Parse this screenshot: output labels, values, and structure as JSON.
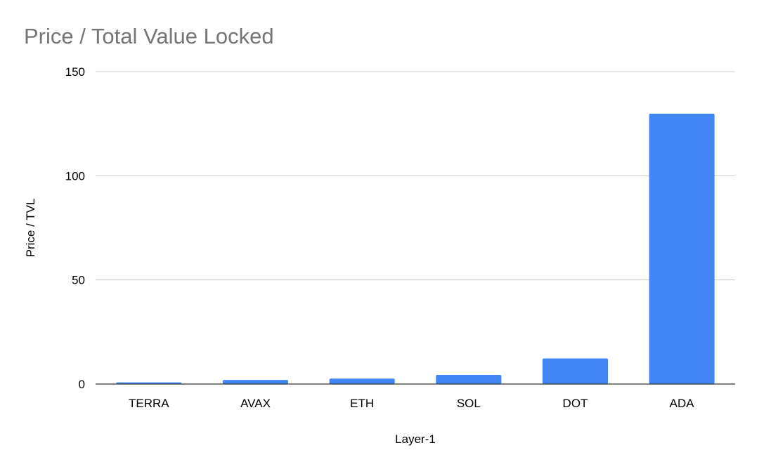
{
  "chart_data": {
    "type": "bar",
    "title": "Price / Total Value Locked",
    "xlabel": "Layer-1",
    "ylabel": "Price / TVL",
    "categories": [
      "TERRA",
      "AVAX",
      "ETH",
      "SOL",
      "DOT",
      "ADA"
    ],
    "series": [
      {
        "values": [
          0.8,
          2.0,
          2.6,
          4.4,
          12.3,
          129.8
        ],
        "color": "#4285f4"
      }
    ],
    "ylim": [
      0,
      150
    ],
    "yticks": [
      0,
      50,
      100,
      150
    ],
    "ytick_labels": [
      "0",
      "50",
      "100",
      "150"
    ],
    "grid": true,
    "legend": "none"
  },
  "colors": {
    "bar": "#4285f4",
    "title": "#757575",
    "grid": "#cccccc",
    "baseline": "#333333"
  }
}
